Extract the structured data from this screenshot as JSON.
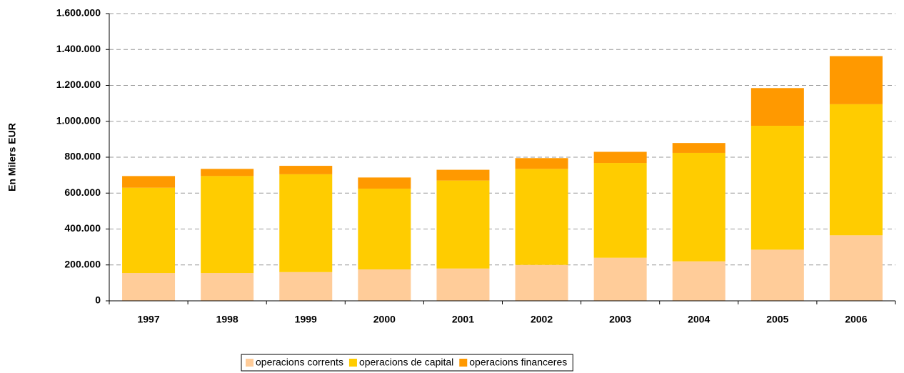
{
  "chart_data": {
    "type": "stacked_bar",
    "y_label": "En Milers EUR",
    "categories": [
      "1997",
      "1998",
      "1999",
      "2000",
      "2001",
      "2002",
      "2003",
      "2004",
      "2005",
      "2006"
    ],
    "series": [
      {
        "name": "operacions corrents",
        "color": "#ffcc99",
        "values": [
          155000,
          155000,
          160000,
          175000,
          180000,
          200000,
          240000,
          220000,
          285000,
          365000
        ]
      },
      {
        "name": "operacions de capital",
        "color": "#ffcc00",
        "values": [
          475000,
          540000,
          545000,
          450000,
          490000,
          535000,
          528000,
          604000,
          690000,
          730000
        ]
      },
      {
        "name": "operacions financeres",
        "color": "#ff9900",
        "values": [
          65000,
          40000,
          47000,
          62000,
          60000,
          60000,
          62000,
          55000,
          210000,
          268000
        ]
      }
    ],
    "ylim": [
      0,
      1600000
    ],
    "yticks": [
      0,
      {
        "value": 200000,
        "label": "200.000"
      },
      {
        "value": 400000,
        "label": "400.000"
      },
      {
        "value": 600000,
        "label": "600.000"
      },
      {
        "value": 800000,
        "label": "800.000"
      },
      {
        "value": 1000000,
        "label": "1.000.000"
      },
      {
        "value": 1200000,
        "label": "1.200.000"
      },
      {
        "value": 1400000,
        "label": "1.400.000"
      },
      {
        "value": 1600000,
        "label": "1.600.000"
      }
    ],
    "grid": true,
    "legend": "bottom"
  }
}
